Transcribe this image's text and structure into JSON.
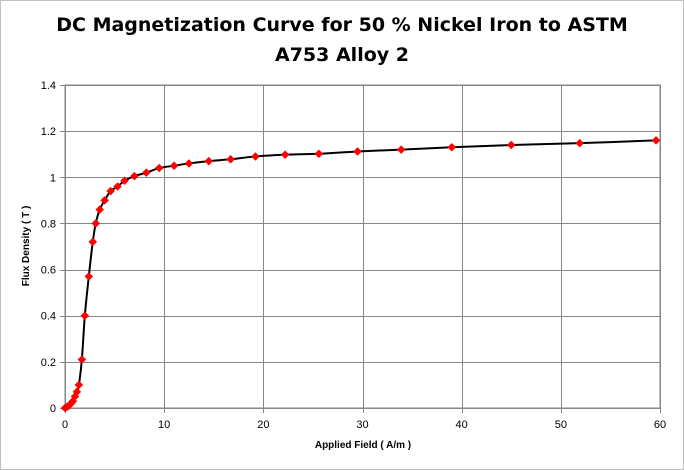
{
  "chart_data": {
    "type": "line",
    "title_lines": [
      "DC Magnetization Curve for 50 % Nickel Iron to ASTM",
      "A753 Alloy 2"
    ],
    "xlabel": "Applied Field ( A/m )",
    "ylabel": "Flux Density ( T )",
    "xlim": [
      0,
      60
    ],
    "ylim": [
      0,
      1.4
    ],
    "xticks": [
      0,
      10,
      20,
      30,
      40,
      50,
      60
    ],
    "xtick_labels": [
      "0",
      "10",
      "20",
      "30",
      "40",
      "50",
      "60"
    ],
    "yticks": [
      0,
      0.2,
      0.4,
      0.6,
      0.8,
      1.0,
      1.2,
      1.4
    ],
    "ytick_labels": [
      "0",
      "0.2",
      "0.4",
      "0.6",
      "0.8",
      "1",
      "1.2",
      "1.4"
    ],
    "grid": true,
    "legend": "none",
    "series": [
      {
        "line_color": "#000000",
        "marker": "diamond",
        "marker_color": "#ff0000",
        "x": [
          0,
          0.2,
          0.4,
          0.6,
          0.8,
          1.0,
          1.2,
          1.4,
          1.7,
          2.0,
          2.4,
          2.8,
          3.1,
          3.5,
          4.0,
          4.6,
          5.3,
          6.0,
          7.0,
          8.2,
          9.5,
          11.0,
          12.5,
          14.5,
          16.7,
          19.2,
          22.2,
          25.6,
          29.5,
          33.9,
          39.0,
          45.0,
          51.9,
          59.6
        ],
        "y": [
          0,
          0.005,
          0.01,
          0.02,
          0.03,
          0.05,
          0.07,
          0.1,
          0.21,
          0.4,
          0.57,
          0.72,
          0.8,
          0.86,
          0.9,
          0.94,
          0.96,
          0.985,
          1.005,
          1.02,
          1.04,
          1.05,
          1.06,
          1.07,
          1.078,
          1.09,
          1.098,
          1.102,
          1.112,
          1.12,
          1.13,
          1.14,
          1.148,
          1.16
        ]
      }
    ]
  }
}
